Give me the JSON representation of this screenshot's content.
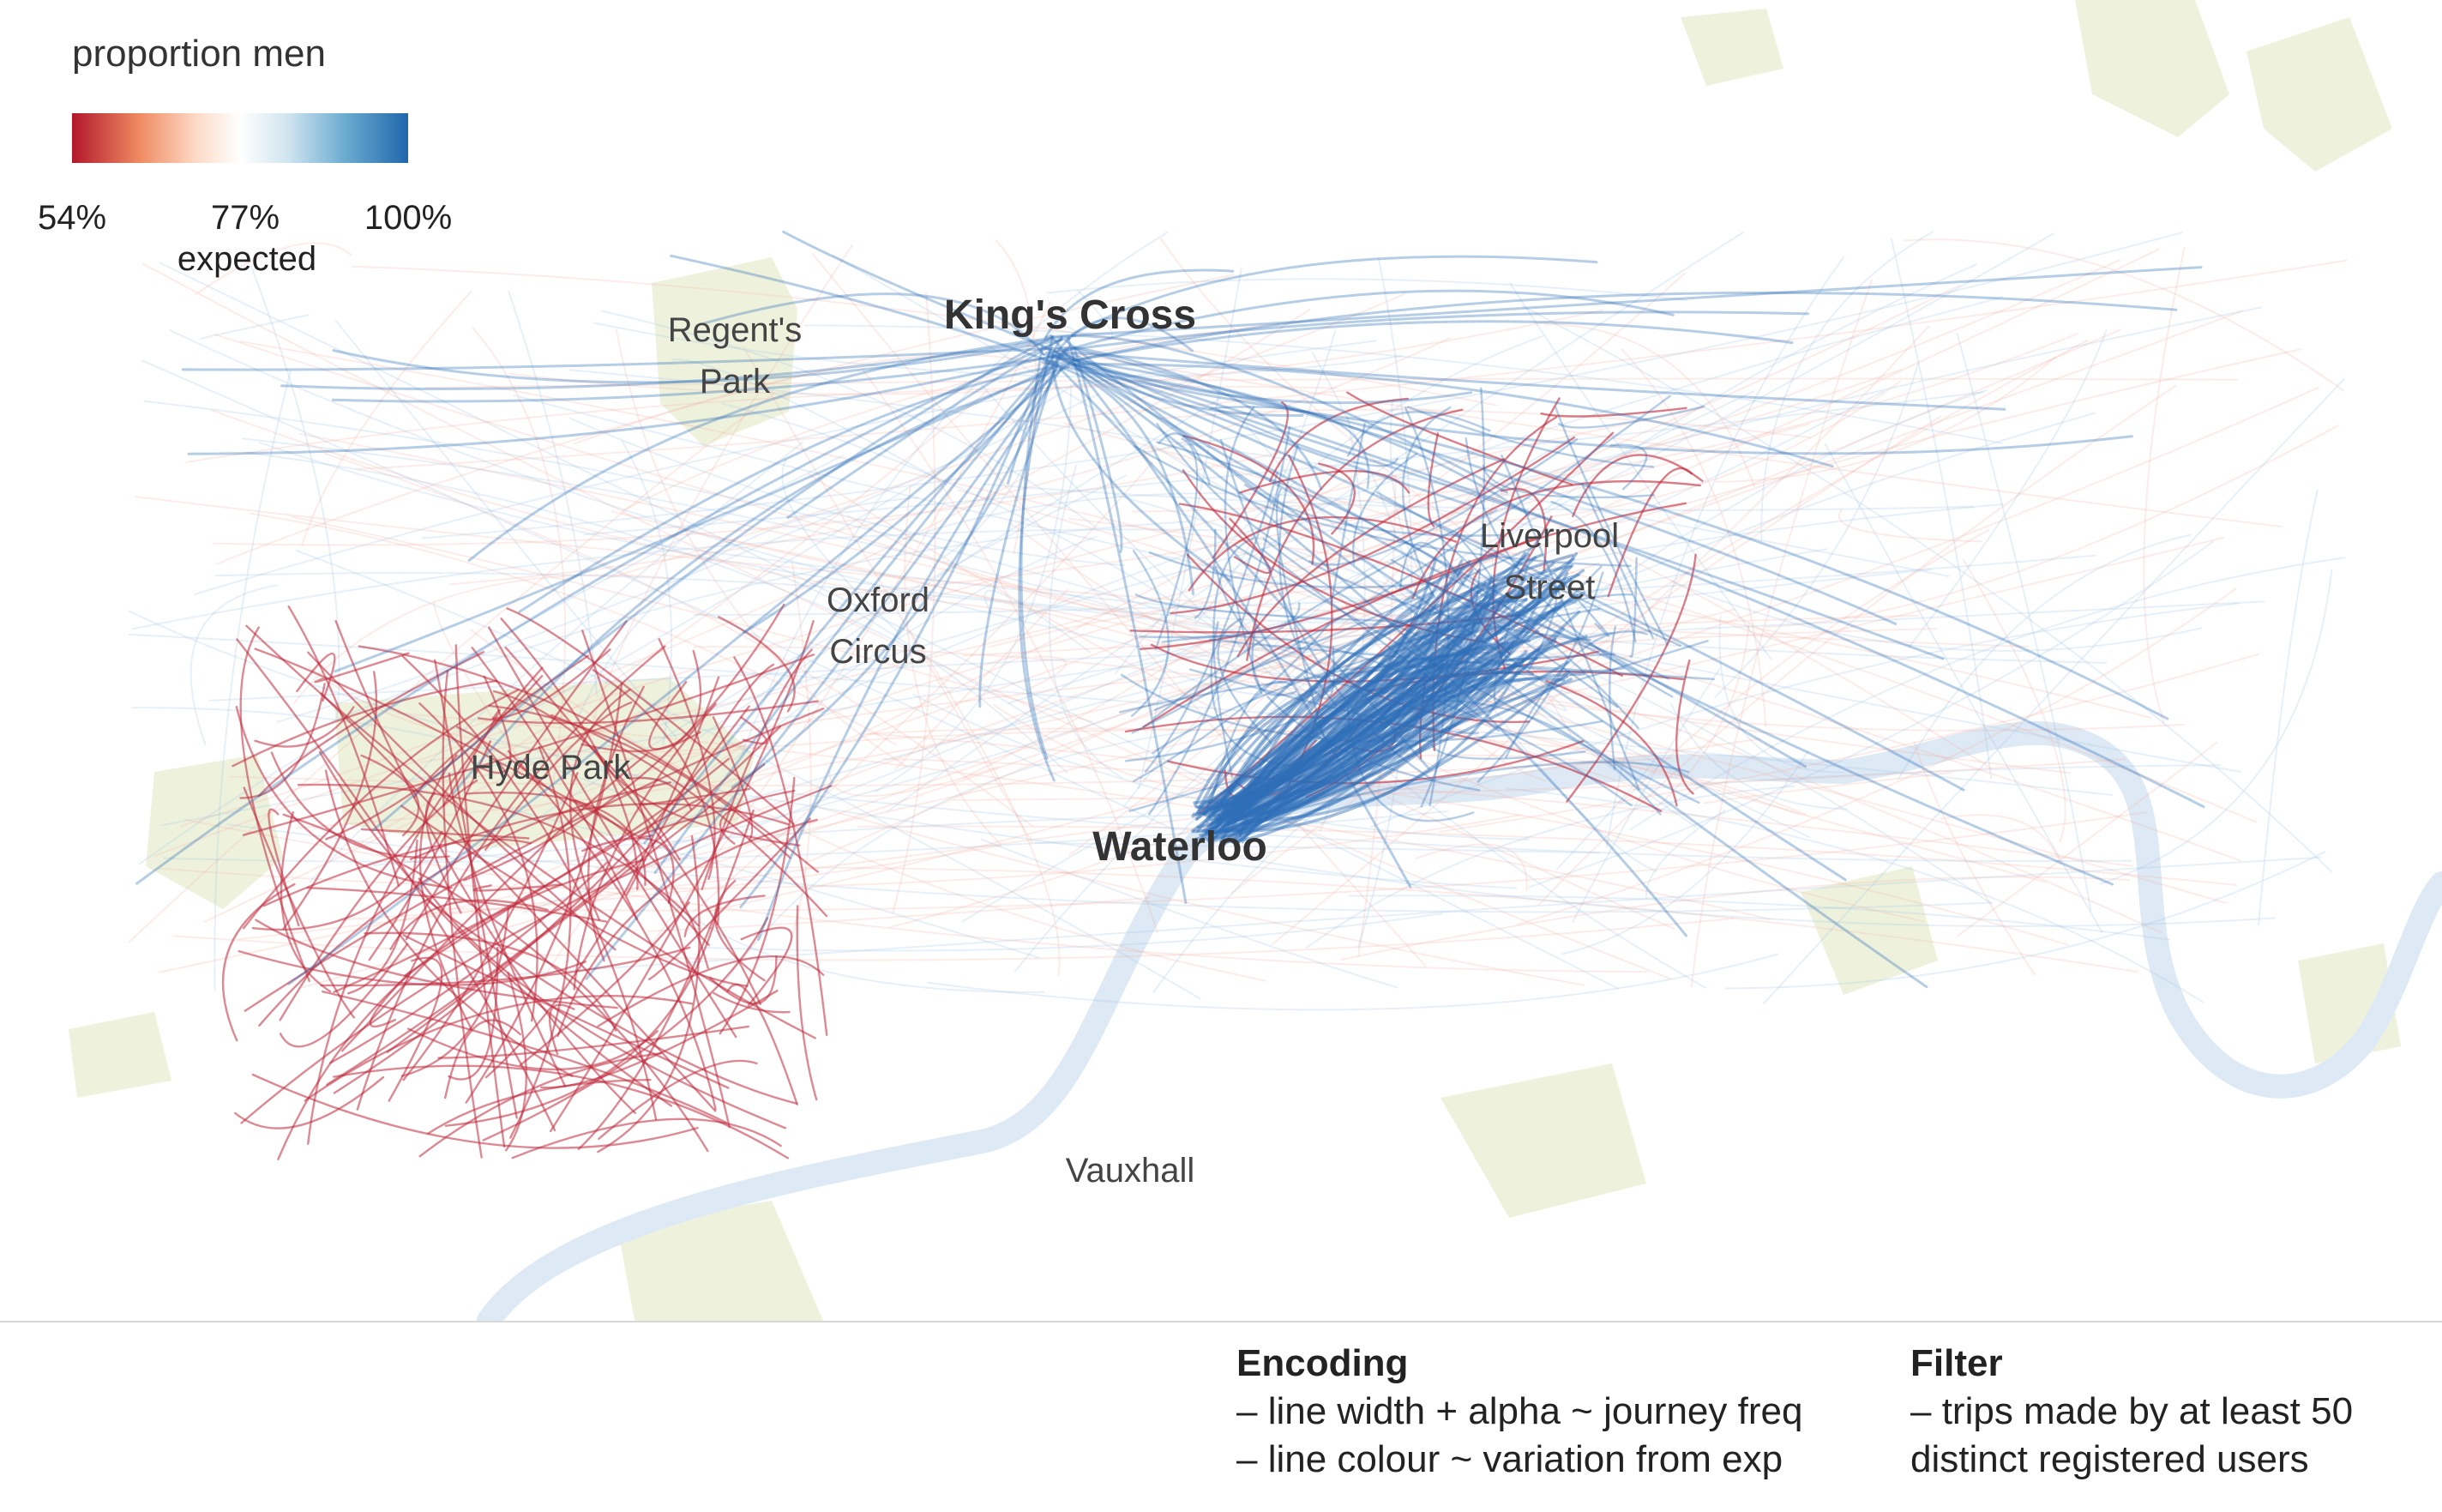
{
  "legend": {
    "title": "proportion men",
    "min_label": "54%",
    "mid_label": "77%",
    "max_label": "100%",
    "expected_label": "expected",
    "colors": [
      "#b2182b",
      "#ef8a62",
      "#fddbc7",
      "#ffffff",
      "#d1e5f0",
      "#67a9cf",
      "#2166ac"
    ]
  },
  "places": {
    "kings_cross": "King's Cross",
    "regents_park_1": "Regent's",
    "regents_park_2": "Park",
    "oxford_circus_1": "Oxford",
    "oxford_circus_2": "Circus",
    "liverpool_street_1": "Liverpool",
    "liverpool_street_2": "Street",
    "hyde_park": "Hyde Park",
    "waterloo": "Waterloo",
    "vauxhall": "Vauxhall"
  },
  "notes": {
    "encoding_title": "Encoding",
    "encoding_line1": "– line width + alpha ~ journey freq",
    "encoding_line2": "– line colour ~ variation from exp",
    "filter_title": "Filter",
    "filter_line1": "– trips made by at least 50",
    "filter_line2": "distinct registered users"
  },
  "colors": {
    "park": "#eef2dd",
    "river": "#dde9f4",
    "women_lines": "#c0283a",
    "men_lines": "#2f6fb8"
  }
}
